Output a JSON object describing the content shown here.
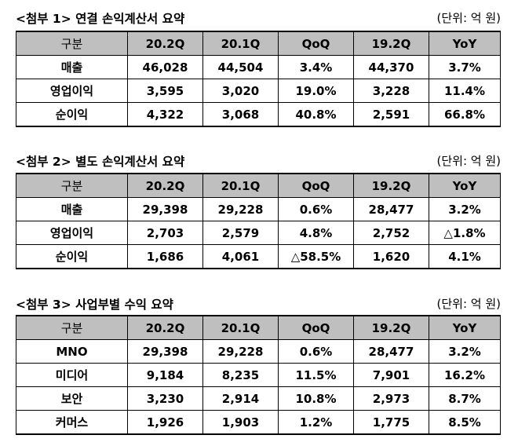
{
  "tables": [
    {
      "title": "<첨부 1> 연결 손익계산서 요약",
      "unit": "(단위: 억 원)",
      "headers": [
        "구분",
        "20.2Q",
        "20.1Q",
        "QoQ",
        "19.2Q",
        "YoY"
      ],
      "rows": [
        [
          "매출",
          "46,028",
          "44,504",
          "3.4%",
          "44,370",
          "3.7%"
        ],
        [
          "영업이익",
          "3,595",
          "3,020",
          "19.0%",
          "3,228",
          "11.4%"
        ],
        [
          "순이익",
          "4,322",
          "3,068",
          "40.8%",
          "2,591",
          "66.8%"
        ]
      ]
    },
    {
      "title": "<첨부 2> 별도 손익계산서 요약",
      "unit": "(단위: 억 원)",
      "headers": [
        "구분",
        "20.2Q",
        "20.1Q",
        "QoQ",
        "19.2Q",
        "YoY"
      ],
      "rows": [
        [
          "매출",
          "29,398",
          "29,228",
          "0.6%",
          "28,477",
          "3.2%"
        ],
        [
          "영업이익",
          "2,703",
          "2,579",
          "4.8%",
          "2,752",
          "△1.8%"
        ],
        [
          "순이익",
          "1,686",
          "4,061",
          "△58.5%",
          "1,620",
          "4.1%"
        ]
      ]
    },
    {
      "title": "<첨부 3> 사업부별 수익 요약",
      "unit": "(단위: 억 원)",
      "headers": [
        "구분",
        "20.2Q",
        "20.1Q",
        "QoQ",
        "19.2Q",
        "YoY"
      ],
      "rows": [
        [
          "MNO",
          "29,398",
          "29,228",
          "0.6%",
          "28,477",
          "3.2%"
        ],
        [
          "미디어",
          "9,184",
          "8,235",
          "11.5%",
          "7,901",
          "16.2%"
        ],
        [
          "보안",
          "3,230",
          "2,914",
          "10.8%",
          "2,973",
          "8.7%"
        ],
        [
          "커머스",
          "1,926",
          "1,903",
          "1.2%",
          "1,775",
          "8.5%"
        ]
      ]
    }
  ]
}
